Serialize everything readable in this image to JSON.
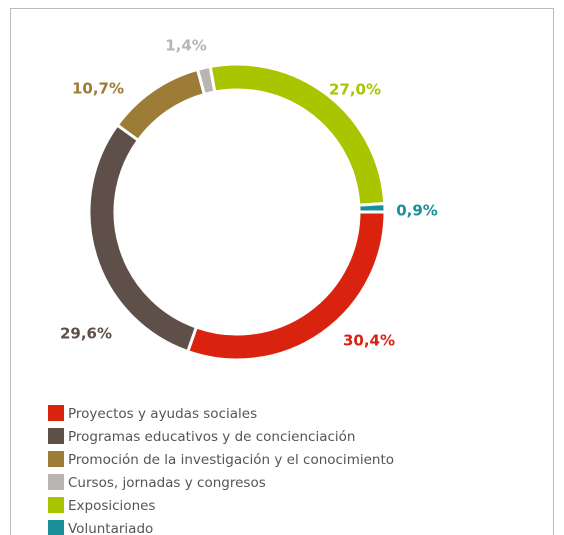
{
  "chart_data": {
    "type": "pie",
    "categories": [
      "Proyectos y ayudas sociales",
      "Programas educativos y de concienciación",
      "Promoción de la investigación y el conocimiento",
      "Cursos, jornadas y congresos",
      "Exposiciones",
      "Voluntariado"
    ],
    "values": [
      30.4,
      29.6,
      10.7,
      1.4,
      27.0,
      0.9
    ],
    "value_labels": [
      "30,4%",
      "29,6%",
      "10,7%",
      "1,4%",
      "27,0%",
      "0,9%"
    ],
    "colors": [
      "#d9230f",
      "#5e5049",
      "#9c7c36",
      "#b8b5b2",
      "#a8c500",
      "#1a8f9a"
    ],
    "donut": true,
    "legend": "bottom-left"
  }
}
